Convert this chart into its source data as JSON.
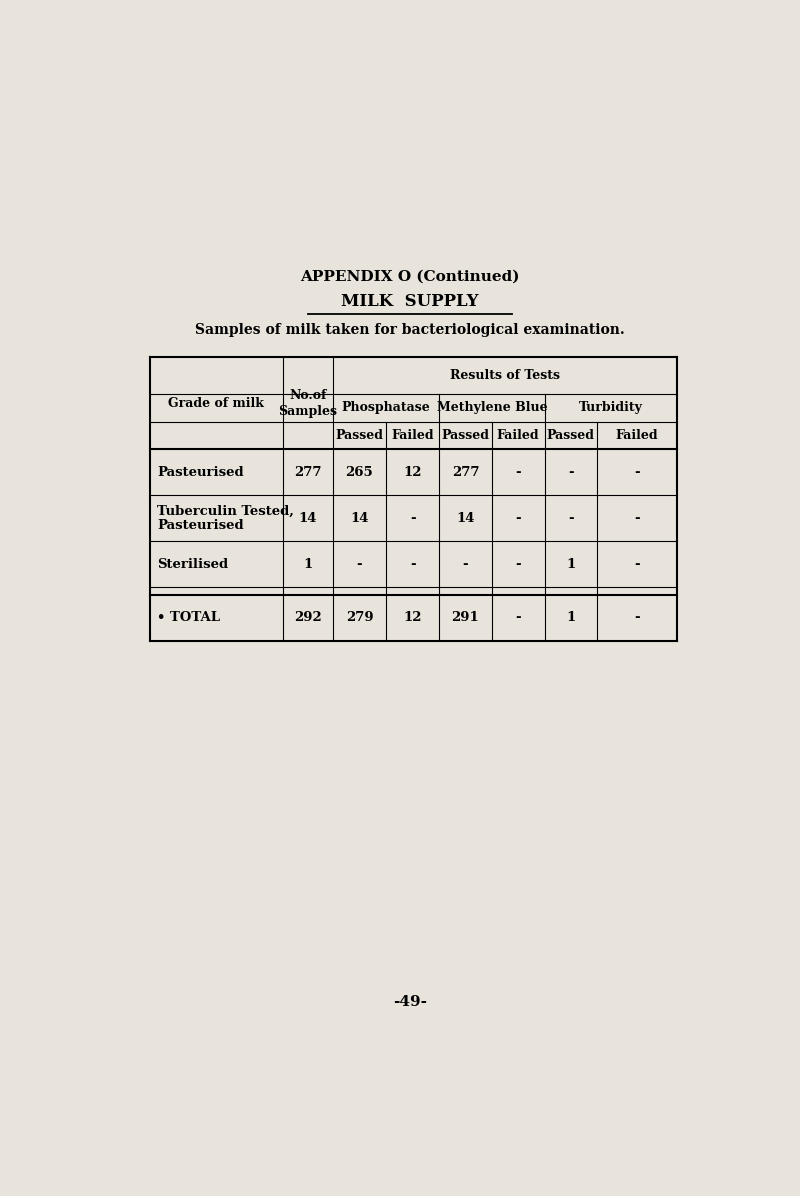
{
  "appendix_title": "APPENDIX O (Continued)",
  "section_title": "MILK  SUPPLY",
  "subtitle": "Samples of milk taken for bacteriological examination.",
  "page_number": "-49-",
  "bg_color": "#e8e4dc",
  "table_rows": [
    [
      "Pasteurised",
      "277",
      "265",
      "12",
      "277",
      "-",
      "-",
      "-"
    ],
    [
      "Tuberculin Tested,\nPasteurised",
      "14",
      "14",
      "-",
      "14",
      "-",
      "-",
      "-"
    ],
    [
      "Sterilised",
      "1",
      "-",
      "-",
      "-",
      "-",
      "1",
      "-"
    ],
    [
      "TOTAL",
      "292",
      "279",
      "12",
      "291",
      "-",
      "1",
      "-"
    ]
  ]
}
